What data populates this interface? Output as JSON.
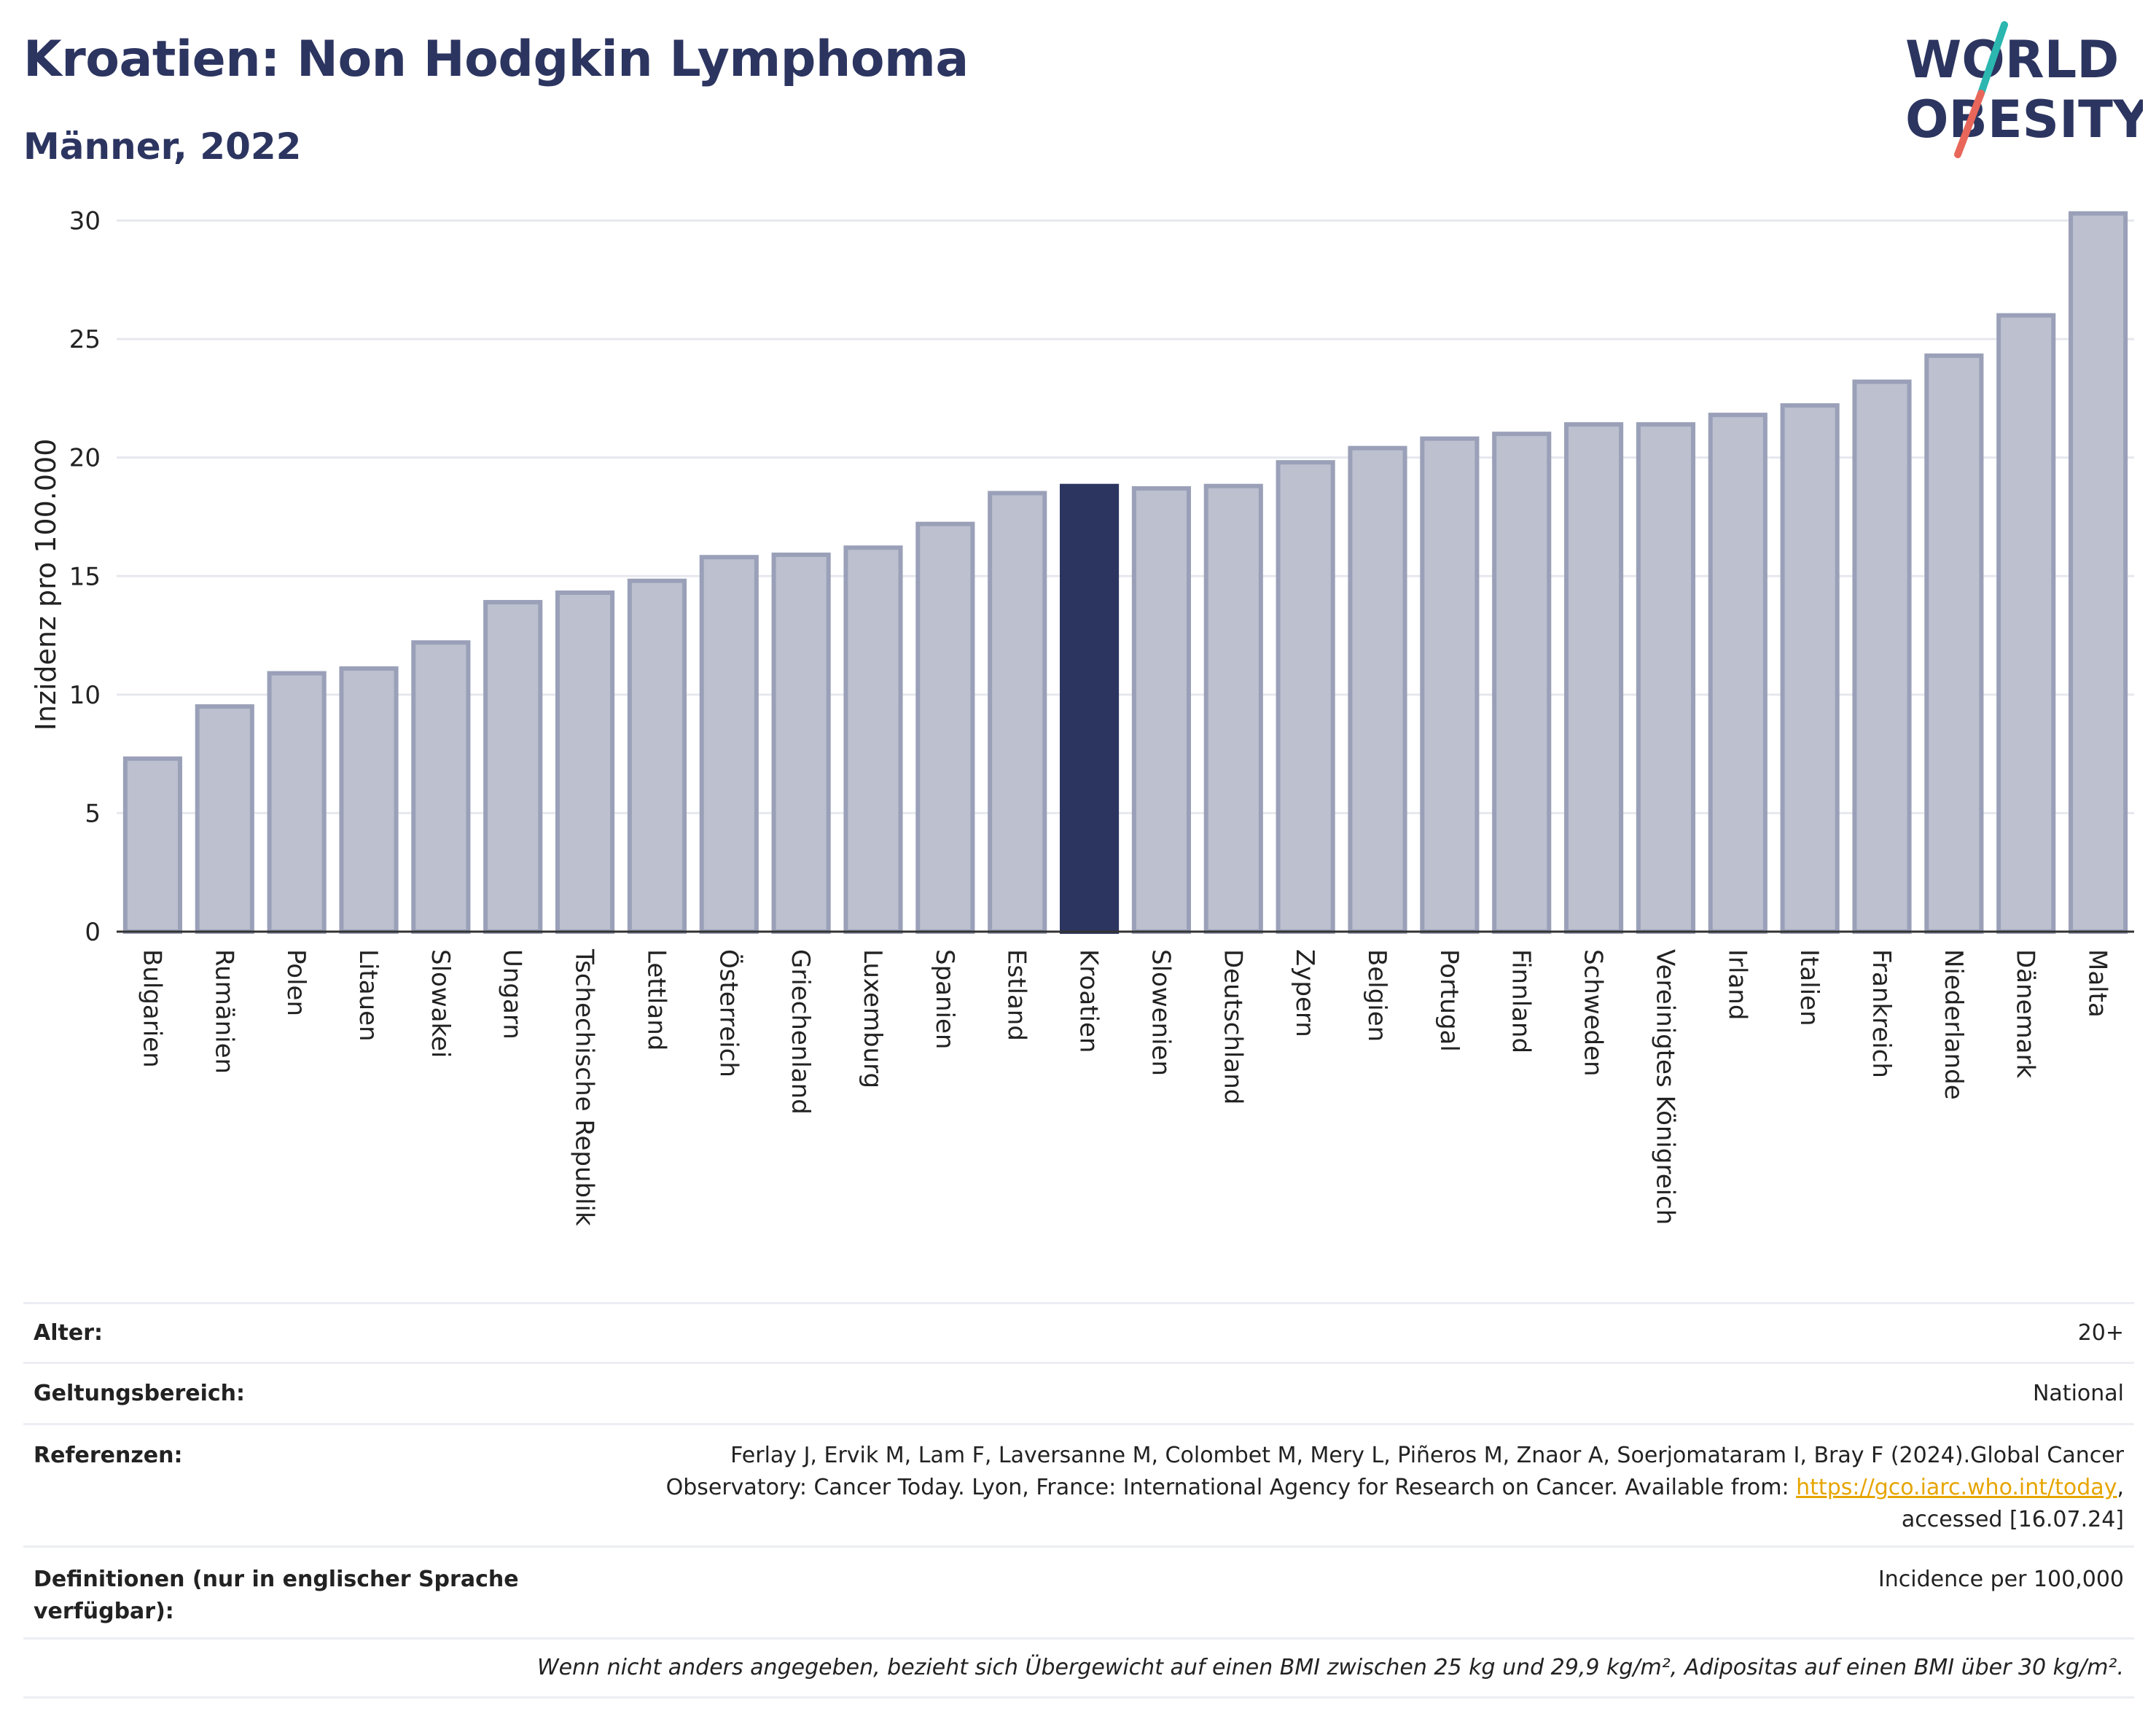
{
  "header": {
    "title": "Kroatien: Non Hodgkin Lymphoma",
    "subtitle": "Männer, 2022"
  },
  "logo": {
    "line1": "WORLD",
    "line2": "OBESITY",
    "colors": {
      "text": "#2c3560",
      "slash_top": "#2bb6b0",
      "slash_bottom": "#e8675a"
    }
  },
  "colors": {
    "bar_fill": "#bcc0cf",
    "bar_stroke": "#9aa0b8",
    "highlight": "#2c3560",
    "grid": "#e6e8ee",
    "axis": "#333333",
    "link": "#e6a500"
  },
  "chart_data": {
    "type": "bar",
    "ylabel": "Inzidenz pro 100.000",
    "xlabel": "",
    "ylim": [
      0,
      31
    ],
    "yticks": [
      0,
      5,
      10,
      15,
      20,
      25,
      30
    ],
    "grid": true,
    "highlight": "Kroatien",
    "categories": [
      "Bulgarien",
      "Rumänien",
      "Polen",
      "Litauen",
      "Slowakei",
      "Ungarn",
      "Tschechische Republik",
      "Lettland",
      "Österreich",
      "Griechenland",
      "Luxemburg",
      "Spanien",
      "Estland",
      "Kroatien",
      "Slowenien",
      "Deutschland",
      "Zypern",
      "Belgien",
      "Portugal",
      "Finnland",
      "Schweden",
      "Vereinigtes Königreich",
      "Irland",
      "Italien",
      "Frankreich",
      "Niederlande",
      "Dänemark",
      "Malta"
    ],
    "values": [
      7.3,
      9.5,
      10.9,
      11.1,
      12.2,
      13.9,
      14.3,
      14.8,
      15.8,
      15.9,
      16.2,
      17.2,
      18.5,
      18.8,
      18.7,
      18.8,
      19.8,
      20.4,
      20.8,
      21.0,
      21.4,
      21.4,
      21.8,
      22.2,
      23.2,
      24.3,
      26.0,
      30.3
    ]
  },
  "info": {
    "age_label": "Alter:",
    "age_value": "20+",
    "scope_label": "Geltungsbereich:",
    "scope_value": "National",
    "ref_label": "Referenzen:",
    "ref_text_1": "Ferlay J, Ervik M, Lam F, Laversanne M, Colombet M, Mery L, Piñeros M, Znaor A, Soerjomataram I, Bray F (2024).Global Cancer",
    "ref_text_2": "Observatory: Cancer Today. Lyon, France: International Agency for Research on Cancer. Available from: ",
    "ref_link": "https://gco.iarc.who.int/today",
    "ref_text_3": ",",
    "ref_text_4": "accessed [16.07.24]",
    "def_label": "Definitionen (nur in englischer Sprache verfügbar):",
    "def_value": "Incidence per 100,000",
    "note": "Wenn nicht anders angegeben, bezieht sich Übergewicht auf einen BMI zwischen 25 kg und 29,9 kg/m², Adipositas auf einen BMI über 30 kg/m²."
  }
}
